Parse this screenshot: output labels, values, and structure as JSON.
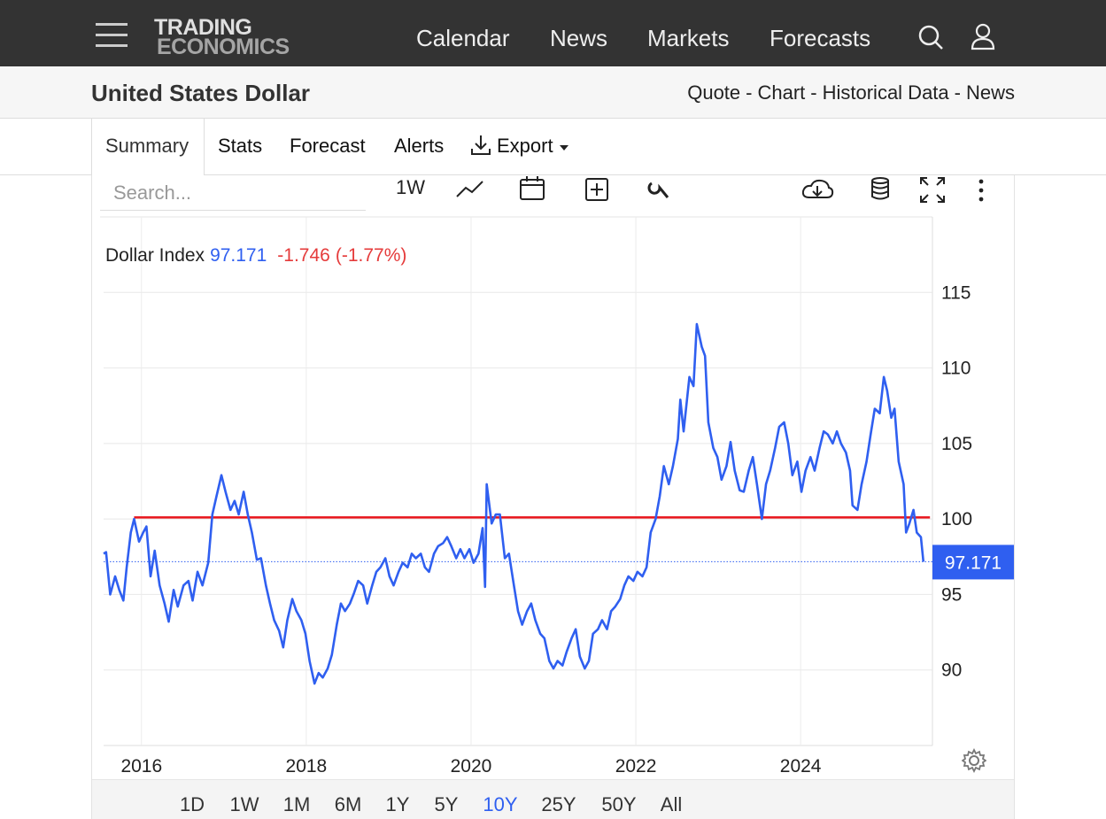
{
  "nav": {
    "logo": [
      "TRADING",
      "ECONOMICS"
    ],
    "links": [
      "Calendar",
      "News",
      "Markets",
      "Forecasts"
    ]
  },
  "header": {
    "title": "United States Dollar",
    "links": [
      "Quote",
      "Chart",
      "Historical Data",
      "News"
    ],
    "separator": "-"
  },
  "tabs": {
    "items": [
      "Summary",
      "Stats",
      "Forecast",
      "Alerts",
      "Export"
    ],
    "active": 0
  },
  "toolbar": {
    "search_placeholder": "Search...",
    "interval": "1W"
  },
  "chart_data": {
    "type": "line",
    "x": [
      2015.54,
      2015.57,
      2015.62,
      2015.68,
      2015.73,
      2015.78,
      2015.82,
      2015.87,
      2015.91,
      2015.97,
      2016.02,
      2016.06,
      2016.11,
      2016.16,
      2016.22,
      2016.28,
      2016.33,
      2016.39,
      2016.44,
      2016.51,
      2016.57,
      2016.62,
      2016.68,
      2016.74,
      2016.81,
      2016.86,
      2016.91,
      2016.97,
      2017.02,
      2017.08,
      2017.13,
      2017.18,
      2017.24,
      2017.29,
      2017.34,
      2017.4,
      2017.45,
      2017.51,
      2017.56,
      2017.61,
      2017.67,
      2017.72,
      2017.77,
      2017.83,
      2017.88,
      2017.94,
      2017.99,
      2018.04,
      2018.1,
      2018.15,
      2018.2,
      2018.26,
      2018.31,
      2018.37,
      2018.42,
      2018.47,
      2018.53,
      2018.58,
      2018.63,
      2018.69,
      2018.74,
      2018.8,
      2018.85,
      2018.9,
      2018.96,
      2019.01,
      2019.06,
      2019.12,
      2019.17,
      2019.23,
      2019.28,
      2019.33,
      2019.39,
      2019.44,
      2019.49,
      2019.55,
      2019.6,
      2019.66,
      2019.71,
      2019.76,
      2019.82,
      2019.87,
      2019.92,
      2019.98,
      2020.03,
      2020.09,
      2020.14,
      2020.17,
      2020.19,
      2020.25,
      2020.3,
      2020.35,
      2020.41,
      2020.46,
      2020.52,
      2020.57,
      2020.62,
      2020.68,
      2020.73,
      2020.78,
      2020.84,
      2020.89,
      2020.95,
      2021.0,
      2021.05,
      2021.11,
      2021.16,
      2021.22,
      2021.27,
      2021.32,
      2021.38,
      2021.43,
      2021.48,
      2021.54,
      2021.59,
      2021.65,
      2021.7,
      2021.75,
      2021.81,
      2021.86,
      2021.91,
      2021.97,
      2022.02,
      2022.08,
      2022.13,
      2022.18,
      2022.24,
      2022.29,
      2022.34,
      2022.4,
      2022.45,
      2022.51,
      2022.54,
      2022.58,
      2022.65,
      2022.7,
      2022.74,
      2022.8,
      2022.84,
      2022.88,
      2022.94,
      2022.99,
      2023.04,
      2023.1,
      2023.15,
      2023.2,
      2023.26,
      2023.31,
      2023.37,
      2023.42,
      2023.47,
      2023.53,
      2023.58,
      2023.63,
      2023.69,
      2023.74,
      2023.8,
      2023.85,
      2023.9,
      2023.96,
      2024.01,
      2024.06,
      2024.12,
      2024.17,
      2024.23,
      2024.28,
      2024.33,
      2024.39,
      2024.44,
      2024.49,
      2024.55,
      2024.6,
      2024.63,
      2024.69,
      2024.74,
      2024.8,
      2024.85,
      2024.9,
      2024.96,
      2025.01,
      2025.05,
      2025.1,
      2025.14,
      2025.19,
      2025.25,
      2025.28,
      2025.32,
      2025.37,
      2025.41,
      2025.46,
      2025.49
    ],
    "series": [
      {
        "name": "Dollar Index",
        "color": "#2f5ff0",
        "values": [
          97.7,
          97.8,
          95.0,
          96.2,
          95.3,
          94.6,
          96.8,
          99.1,
          100.0,
          98.5,
          99.1,
          99.5,
          96.2,
          97.9,
          95.6,
          94.4,
          93.2,
          95.3,
          94.2,
          95.6,
          95.9,
          94.6,
          96.5,
          95.6,
          97.1,
          100.3,
          101.5,
          102.9,
          101.8,
          100.6,
          101.2,
          100.3,
          101.8,
          100.3,
          99.1,
          97.3,
          97.4,
          95.6,
          94.4,
          93.3,
          92.6,
          91.5,
          93.3,
          94.7,
          93.9,
          93.3,
          92.4,
          90.6,
          89.1,
          89.8,
          89.5,
          90.1,
          91.0,
          93.0,
          94.4,
          93.9,
          94.4,
          95.1,
          95.9,
          95.6,
          94.4,
          95.6,
          96.5,
          96.8,
          97.4,
          96.2,
          95.6,
          96.5,
          97.1,
          96.8,
          97.7,
          97.4,
          97.7,
          96.8,
          96.5,
          97.7,
          98.2,
          98.4,
          98.8,
          98.2,
          97.4,
          98.0,
          97.4,
          98.0,
          97.1,
          97.7,
          99.4,
          95.5,
          102.3,
          99.7,
          100.3,
          100.3,
          97.4,
          97.7,
          95.6,
          93.9,
          93.0,
          93.9,
          94.4,
          93.3,
          92.4,
          92.1,
          90.6,
          90.1,
          90.6,
          90.3,
          91.2,
          92.1,
          92.7,
          90.9,
          90.1,
          90.6,
          92.4,
          92.7,
          93.3,
          92.7,
          93.9,
          94.2,
          94.7,
          95.6,
          96.2,
          95.9,
          96.5,
          96.2,
          96.8,
          99.1,
          100.0,
          101.5,
          103.5,
          102.3,
          103.5,
          105.3,
          107.9,
          105.8,
          109.4,
          108.8,
          112.9,
          111.4,
          110.8,
          106.4,
          104.7,
          104.1,
          102.6,
          103.5,
          105.1,
          103.2,
          101.9,
          101.8,
          103.2,
          104.1,
          102.3,
          100.0,
          102.3,
          103.2,
          104.7,
          106.1,
          106.4,
          105.0,
          102.9,
          103.8,
          101.8,
          103.2,
          104.1,
          103.2,
          104.7,
          105.8,
          105.6,
          105.0,
          105.8,
          105.0,
          104.4,
          103.2,
          100.9,
          100.6,
          102.3,
          103.8,
          105.6,
          107.3,
          107.0,
          109.4,
          108.5,
          106.7,
          107.3,
          103.8,
          102.3,
          99.1,
          99.7,
          100.6,
          99.1,
          98.8,
          97.171
        ]
      }
    ],
    "xlim": [
      2015.54,
      2025.6
    ],
    "xticks": [
      2016,
      2018,
      2020,
      2022,
      2024
    ],
    "ylim": [
      85,
      120
    ],
    "yticks": [
      90,
      95,
      100,
      105,
      110,
      115
    ],
    "y_axis_side": "right",
    "grid": true,
    "last": {
      "value": 97.171,
      "change": -1.746,
      "change_pct": {
        "value": -1.77,
        "label": "(-1.77%)"
      }
    },
    "reference_line": {
      "value": 100.1,
      "x": [
        2015.91,
        2025.57
      ],
      "color": "#e8141b"
    }
  },
  "ranges": {
    "items": [
      "1D",
      "1W",
      "1M",
      "6M",
      "1Y",
      "5Y",
      "10Y",
      "25Y",
      "50Y",
      "All"
    ],
    "active": 6
  }
}
